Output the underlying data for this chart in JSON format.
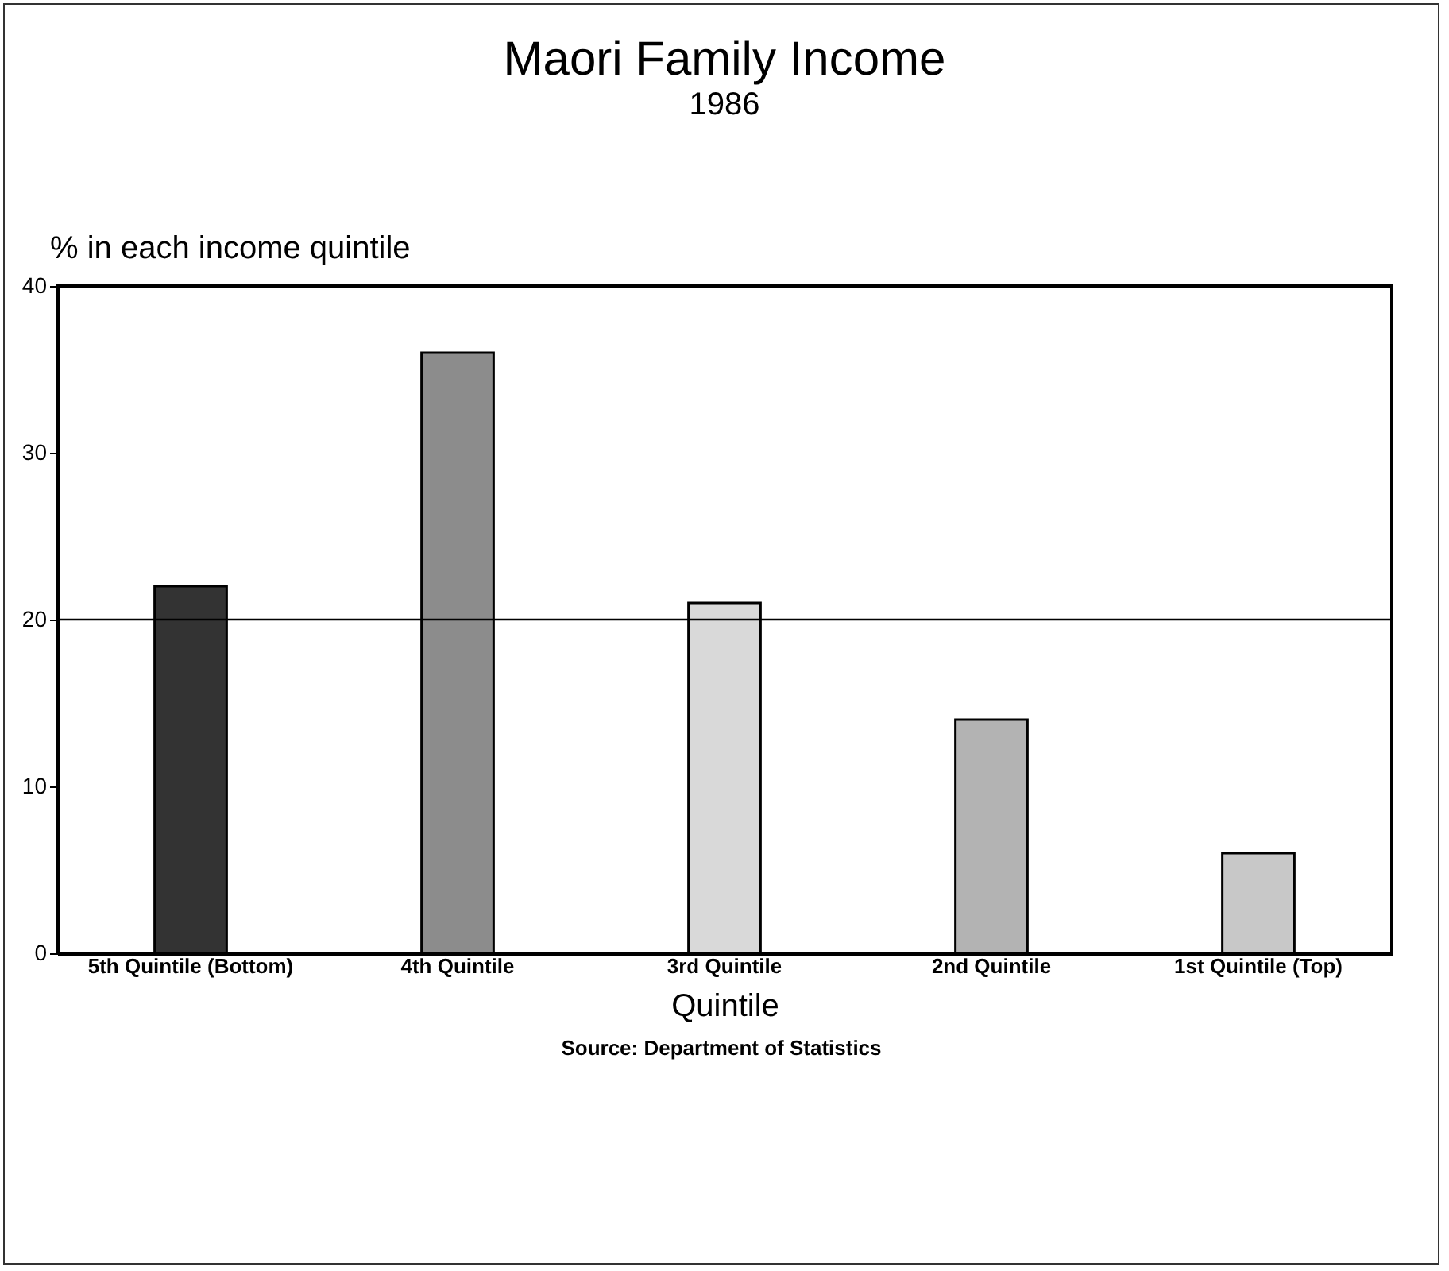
{
  "chart_data": {
    "type": "bar",
    "title": "Maori Family Income",
    "subtitle": "1986",
    "xlabel": "Quintile",
    "ylabel": "% in each income quintile",
    "categories": [
      "5th Quintile (Bottom)",
      "4th Quintile",
      "3rd Quintile",
      "2nd Quintile",
      "1st Quintile (Top)"
    ],
    "values": [
      22,
      36,
      21,
      14,
      6
    ],
    "colors": [
      "#333333",
      "#8c8c8c",
      "#d9d9d9",
      "#b3b3b3",
      "#c8c8c8"
    ],
    "ylim": [
      0,
      40
    ],
    "yticks": [
      0,
      10,
      20,
      30,
      40
    ],
    "ref_lines": [
      {
        "axis": "y",
        "value": 20,
        "label": null
      }
    ],
    "annotations": [
      "Source: Department of Statistics"
    ]
  }
}
